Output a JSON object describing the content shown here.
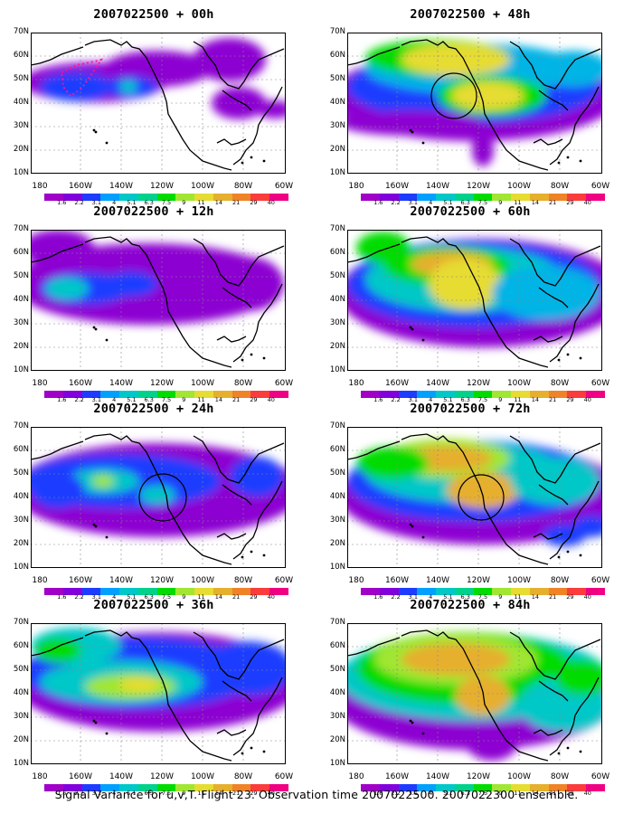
{
  "panels": [
    {
      "id": "p00",
      "title": "2007022500 + 00h"
    },
    {
      "id": "p48",
      "title": "2007022500 + 48h"
    },
    {
      "id": "p12",
      "title": "2007022500 + 12h"
    },
    {
      "id": "p60",
      "title": "2007022500 + 60h"
    },
    {
      "id": "p24",
      "title": "2007022500 + 24h"
    },
    {
      "id": "p72",
      "title": "2007022500 + 72h"
    },
    {
      "id": "p36",
      "title": "2007022500 + 36h"
    },
    {
      "id": "p84",
      "title": "2007022500 + 84h"
    }
  ],
  "lat_labels": [
    "70N",
    "60N",
    "50N",
    "40N",
    "30N",
    "20N",
    "10N"
  ],
  "lon_labels": [
    "180",
    "160W",
    "140W",
    "120W",
    "100W",
    "80W",
    "60W"
  ],
  "colorbar": {
    "labels": [
      "1.6",
      "2.2",
      "3.1",
      "4",
      "5.1",
      "6.3",
      "7.5",
      "9",
      "11",
      "14",
      "21",
      "29",
      "40"
    ],
    "colors": [
      "#a000c8",
      "#8200dc",
      "#1e3cff",
      "#00a0ff",
      "#00c8c8",
      "#00d28c",
      "#00dc00",
      "#a0e632",
      "#e6dc32",
      "#e6af2d",
      "#f08228",
      "#fa3c3c",
      "#f00082"
    ]
  },
  "caption": "Signal Variance for u,v,T. Flight 23. Observation time 2007022500. 2007022300 ensemble."
}
